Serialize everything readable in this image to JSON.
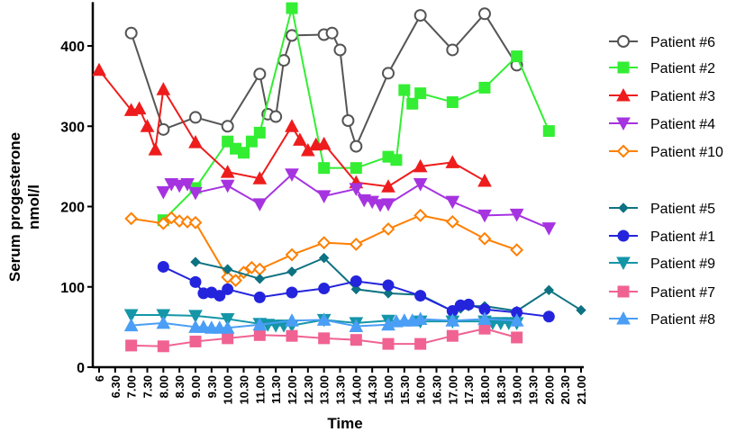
{
  "chart_data": {
    "type": "line",
    "xlabel": "Time",
    "ylabel": "Serum progesterone nmol/l",
    "ylabel_lines": [
      "Serum progesterone",
      "nmol/l"
    ],
    "xlim": [
      6,
      21
    ],
    "ylim": [
      0,
      450
    ],
    "yticks": [
      0,
      100,
      200,
      300,
      400
    ],
    "xtick_labels": [
      "6",
      "6.30",
      "7.00",
      "7.30",
      "8.00",
      "8.30",
      "9.00",
      "9.30",
      "10.00",
      "10.30",
      "11.00",
      "11.30",
      "12.00",
      "12.30",
      "13.00",
      "13.30",
      "14.00",
      "14.30",
      "15.00",
      "15.30",
      "16.00",
      "16.30",
      "17.00",
      "17.30",
      "18.00",
      "18.30",
      "19.00",
      "19.30",
      "20.00",
      "20.30",
      "21.00"
    ],
    "grid": false,
    "legend_placement": "right",
    "series": [
      {
        "name": "Patient #6",
        "color": "#555555",
        "marker": "circle-open",
        "points": [
          [
            7,
            416
          ],
          [
            8,
            296
          ],
          [
            9,
            311
          ],
          [
            10,
            300
          ],
          [
            11,
            365
          ],
          [
            11.25,
            315
          ],
          [
            11.5,
            312
          ],
          [
            11.75,
            382
          ],
          [
            12,
            413
          ],
          [
            13,
            414
          ],
          [
            13.25,
            416
          ],
          [
            13.5,
            395
          ],
          [
            13.75,
            307
          ],
          [
            14,
            275
          ],
          [
            15,
            366
          ],
          [
            16,
            438
          ],
          [
            17,
            395
          ],
          [
            18,
            440
          ],
          [
            19,
            376
          ]
        ]
      },
      {
        "name": "Patient #2",
        "color": "#33ee33",
        "marker": "square",
        "points": [
          [
            8,
            183
          ],
          [
            9,
            223
          ],
          [
            10,
            281
          ],
          [
            10.25,
            272
          ],
          [
            10.5,
            267
          ],
          [
            10.75,
            281
          ],
          [
            11,
            292
          ],
          [
            12,
            447
          ],
          [
            13,
            248
          ],
          [
            14,
            248
          ],
          [
            15,
            262
          ],
          [
            15.25,
            258
          ],
          [
            15.5,
            345
          ],
          [
            15.75,
            328
          ],
          [
            16,
            341
          ],
          [
            17,
            330
          ],
          [
            18,
            348
          ],
          [
            19,
            387
          ],
          [
            20,
            294
          ]
        ]
      },
      {
        "name": "Patient #3",
        "color": "#ee1c1c",
        "marker": "triangle-up",
        "points": [
          [
            6,
            370
          ],
          [
            7,
            320
          ],
          [
            7.25,
            322
          ],
          [
            7.5,
            300
          ],
          [
            7.75,
            271
          ],
          [
            8,
            346
          ],
          [
            9,
            280
          ],
          [
            10,
            243
          ],
          [
            11,
            235
          ],
          [
            12,
            300
          ],
          [
            12.25,
            283
          ],
          [
            12.5,
            270
          ],
          [
            12.75,
            277
          ],
          [
            13,
            278
          ],
          [
            14,
            230
          ],
          [
            15,
            225
          ],
          [
            16,
            250
          ],
          [
            17,
            255
          ],
          [
            18,
            232
          ]
        ]
      },
      {
        "name": "Patient #4",
        "color": "#a633e0",
        "marker": "triangle-down",
        "points": [
          [
            8,
            218
          ],
          [
            8.25,
            228
          ],
          [
            8.5,
            226
          ],
          [
            8.75,
            228
          ],
          [
            9,
            217
          ],
          [
            10,
            226
          ],
          [
            11,
            203
          ],
          [
            12,
            240
          ],
          [
            13,
            213
          ],
          [
            14,
            222
          ],
          [
            14.25,
            208
          ],
          [
            14.5,
            206
          ],
          [
            14.75,
            202
          ],
          [
            15,
            203
          ],
          [
            16,
            228
          ],
          [
            17,
            206
          ],
          [
            18,
            189
          ],
          [
            19,
            190
          ],
          [
            20,
            173
          ]
        ]
      },
      {
        "name": "Patient #10",
        "color": "#ff7f00",
        "marker": "diamond-open",
        "points": [
          [
            7,
            185
          ],
          [
            8,
            179
          ],
          [
            8.25,
            186
          ],
          [
            8.5,
            182
          ],
          [
            8.75,
            181
          ],
          [
            9,
            180
          ],
          [
            10,
            112
          ],
          [
            10.25,
            108
          ],
          [
            10.5,
            118
          ],
          [
            10.75,
            124
          ],
          [
            11,
            122
          ],
          [
            12,
            140
          ],
          [
            13,
            155
          ],
          [
            14,
            153
          ],
          [
            15,
            172
          ],
          [
            16,
            189
          ],
          [
            17,
            181
          ],
          [
            18,
            160
          ],
          [
            19,
            146
          ]
        ]
      },
      {
        "name": "Patient #5",
        "color": "#0e7282",
        "marker": "diamond",
        "points": [
          [
            9,
            131
          ],
          [
            10,
            122
          ],
          [
            11,
            110
          ],
          [
            12,
            119
          ],
          [
            13,
            136
          ],
          [
            14,
            97
          ],
          [
            15,
            92
          ],
          [
            16,
            90
          ],
          [
            17,
            70
          ],
          [
            17.25,
            73
          ],
          [
            17.5,
            76
          ],
          [
            18,
            76
          ],
          [
            19,
            70
          ],
          [
            20,
            96
          ],
          [
            21,
            71
          ]
        ]
      },
      {
        "name": "Patient #1",
        "color": "#2424dd",
        "marker": "circle",
        "points": [
          [
            8,
            125
          ],
          [
            9,
            106
          ],
          [
            9.25,
            92
          ],
          [
            9.5,
            93
          ],
          [
            9.75,
            89
          ],
          [
            10,
            97
          ],
          [
            11,
            87
          ],
          [
            12,
            93
          ],
          [
            13,
            98
          ],
          [
            14,
            107
          ],
          [
            15,
            102
          ],
          [
            16,
            89
          ],
          [
            17,
            70
          ],
          [
            17.25,
            77
          ],
          [
            17.5,
            78
          ],
          [
            18,
            72
          ],
          [
            19,
            68
          ],
          [
            20,
            63
          ]
        ]
      },
      {
        "name": "Patient #9",
        "color": "#1496a8",
        "marker": "triangle-down",
        "points": [
          [
            7,
            65
          ],
          [
            8,
            65
          ],
          [
            9,
            64
          ],
          [
            10,
            60
          ],
          [
            11,
            54
          ],
          [
            11.25,
            53
          ],
          [
            11.5,
            52
          ],
          [
            11.75,
            52
          ],
          [
            12,
            52
          ],
          [
            13,
            59
          ],
          [
            14,
            55
          ],
          [
            15,
            58
          ],
          [
            16,
            57
          ],
          [
            17,
            57
          ],
          [
            18,
            57
          ],
          [
            18.25,
            55
          ],
          [
            18.5,
            55
          ],
          [
            18.75,
            55
          ],
          [
            19,
            55
          ]
        ]
      },
      {
        "name": "Patient #7",
        "color": "#f06292",
        "marker": "square",
        "points": [
          [
            7,
            27
          ],
          [
            8,
            26
          ],
          [
            9,
            32
          ],
          [
            10,
            36
          ],
          [
            11,
            40
          ],
          [
            12,
            39
          ],
          [
            13,
            36
          ],
          [
            14,
            34
          ],
          [
            15,
            29
          ],
          [
            16,
            29
          ],
          [
            17,
            39
          ],
          [
            18,
            48
          ],
          [
            19,
            37
          ]
        ]
      },
      {
        "name": "Patient #8",
        "color": "#4a9ef5",
        "marker": "triangle-up",
        "points": [
          [
            7,
            52
          ],
          [
            8,
            55
          ],
          [
            9,
            50
          ],
          [
            9.25,
            50
          ],
          [
            9.5,
            49
          ],
          [
            9.75,
            49
          ],
          [
            10,
            49
          ],
          [
            11,
            53
          ],
          [
            12,
            58
          ],
          [
            13,
            59
          ],
          [
            14,
            51
          ],
          [
            15,
            53
          ],
          [
            15.25,
            57
          ],
          [
            15.5,
            58
          ],
          [
            15.75,
            58
          ],
          [
            16,
            60
          ],
          [
            17,
            58
          ],
          [
            18,
            60
          ],
          [
            19,
            58
          ]
        ]
      }
    ]
  }
}
